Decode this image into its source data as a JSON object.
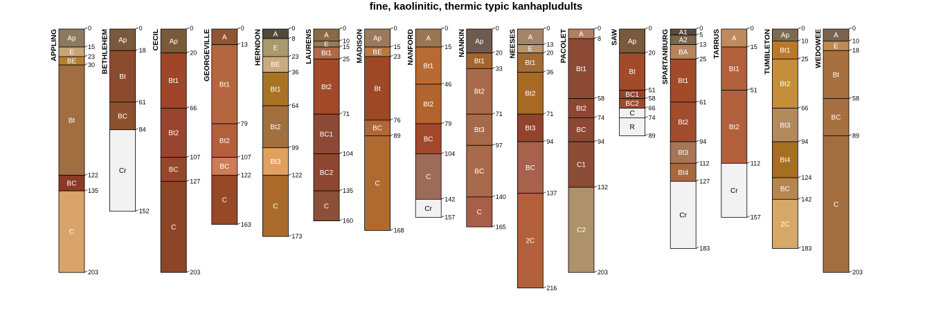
{
  "title": "fine, kaolinitic, thermic typic kanhapludults",
  "chart_data": {
    "type": "soil-profile-sketch",
    "depth_unit": "cm",
    "profiles": [
      {
        "name": "APPLING",
        "horizons": [
          {
            "name": "Ap",
            "top": 0,
            "bottom": 15,
            "color": "#8d7a5e"
          },
          {
            "name": "E",
            "top": 15,
            "bottom": 23,
            "color": "#c8a47a"
          },
          {
            "name": "BE",
            "top": 23,
            "bottom": 30,
            "color": "#b57f2f"
          },
          {
            "name": "Bt",
            "top": 30,
            "bottom": 122,
            "color": "#a16e42"
          },
          {
            "name": "BC",
            "top": 122,
            "bottom": 135,
            "color": "#8b3a23"
          },
          {
            "name": "C",
            "top": 135,
            "bottom": 203,
            "color": "#d9a36c"
          }
        ]
      },
      {
        "name": "BETHLEHEM",
        "horizons": [
          {
            "name": "Ap",
            "top": 0,
            "bottom": 18,
            "color": "#7a5a3c"
          },
          {
            "name": "Bt",
            "top": 18,
            "bottom": 61,
            "color": "#8c4a2e"
          },
          {
            "name": "BC",
            "top": 61,
            "bottom": 84,
            "color": "#8c5230"
          },
          {
            "name": "Cr",
            "top": 84,
            "bottom": 152,
            "color": "#f2f2f2"
          }
        ]
      },
      {
        "name": "CECIL",
        "horizons": [
          {
            "name": "Ap",
            "top": 0,
            "bottom": 20,
            "color": "#7a5a3a"
          },
          {
            "name": "Bt1",
            "top": 20,
            "bottom": 66,
            "color": "#a0452a"
          },
          {
            "name": "Bt2",
            "top": 66,
            "bottom": 107,
            "color": "#9a4430"
          },
          {
            "name": "BC",
            "top": 107,
            "bottom": 127,
            "color": "#96462a"
          },
          {
            "name": "C",
            "top": 127,
            "bottom": 203,
            "color": "#8e4426"
          }
        ]
      },
      {
        "name": "GEORGEVILLE",
        "horizons": [
          {
            "name": "A",
            "top": 0,
            "bottom": 13,
            "color": "#8e5532"
          },
          {
            "name": "Bt1",
            "top": 13,
            "bottom": 79,
            "color": "#b6663e"
          },
          {
            "name": "Bt2",
            "top": 79,
            "bottom": 107,
            "color": "#b25f3a"
          },
          {
            "name": "BC",
            "top": 107,
            "bottom": 122,
            "color": "#cd7c55"
          },
          {
            "name": "C",
            "top": 122,
            "bottom": 163,
            "color": "#964827"
          }
        ]
      },
      {
        "name": "HERNDON",
        "horizons": [
          {
            "name": "A",
            "top": 0,
            "bottom": 8,
            "color": "#52483c"
          },
          {
            "name": "E",
            "top": 8,
            "bottom": 23,
            "color": "#a89a6c"
          },
          {
            "name": "BE",
            "top": 23,
            "bottom": 36,
            "color": "#c9ab7e"
          },
          {
            "name": "Bt1",
            "top": 36,
            "bottom": 64,
            "color": "#a87424"
          },
          {
            "name": "Bt2",
            "top": 64,
            "bottom": 99,
            "color": "#a2703e"
          },
          {
            "name": "Bt3",
            "top": 99,
            "bottom": 122,
            "color": "#e0a05e"
          },
          {
            "name": "C",
            "top": 122,
            "bottom": 173,
            "color": "#aa6b2a"
          }
        ]
      },
      {
        "name": "LAURENS",
        "horizons": [
          {
            "name": "A",
            "top": 0,
            "bottom": 10,
            "color": "#8a6a44"
          },
          {
            "name": "E",
            "top": 10,
            "bottom": 15,
            "color": "#9c7a58"
          },
          {
            "name": "Bt1",
            "top": 15,
            "bottom": 25,
            "color": "#b06a48"
          },
          {
            "name": "Bt2",
            "top": 25,
            "bottom": 71,
            "color": "#a24a2a"
          },
          {
            "name": "BC1",
            "top": 71,
            "bottom": 104,
            "color": "#8c4a36"
          },
          {
            "name": "BC2",
            "top": 104,
            "bottom": 135,
            "color": "#8e4630"
          },
          {
            "name": "C",
            "top": 135,
            "bottom": 160,
            "color": "#8c5038"
          }
        ]
      },
      {
        "name": "MADISON",
        "horizons": [
          {
            "name": "Ap",
            "top": 0,
            "bottom": 15,
            "color": "#9a7a5c"
          },
          {
            "name": "BE",
            "top": 15,
            "bottom": 23,
            "color": "#b8783e"
          },
          {
            "name": "Bt",
            "top": 23,
            "bottom": 76,
            "color": "#9e4826"
          },
          {
            "name": "BC",
            "top": 76,
            "bottom": 89,
            "color": "#b06636"
          },
          {
            "name": "C",
            "top": 89,
            "bottom": 168,
            "color": "#b06a30"
          }
        ]
      },
      {
        "name": "NANFORD",
        "horizons": [
          {
            "name": "A",
            "top": 0,
            "bottom": 15,
            "color": "#9a7654"
          },
          {
            "name": "Bt1",
            "top": 15,
            "bottom": 46,
            "color": "#b86a34"
          },
          {
            "name": "Bt2",
            "top": 46,
            "bottom": 79,
            "color": "#b2642e"
          },
          {
            "name": "BC",
            "top": 79,
            "bottom": 104,
            "color": "#a2482c"
          },
          {
            "name": "C",
            "top": 104,
            "bottom": 142,
            "color": "#9c6c58"
          },
          {
            "name": "Cr",
            "top": 142,
            "bottom": 157,
            "color": "#f2f2f2"
          }
        ]
      },
      {
        "name": "NANKIN",
        "horizons": [
          {
            "name": "Ap",
            "top": 0,
            "bottom": 20,
            "color": "#6e5a4e"
          },
          {
            "name": "Bt1",
            "top": 20,
            "bottom": 33,
            "color": "#a4642e"
          },
          {
            "name": "Bt2",
            "top": 33,
            "bottom": 71,
            "color": "#a86a4a"
          },
          {
            "name": "Bt3",
            "top": 71,
            "bottom": 97,
            "color": "#a66a48"
          },
          {
            "name": "BC",
            "top": 97,
            "bottom": 140,
            "color": "#a86a4a"
          },
          {
            "name": "C",
            "top": 140,
            "bottom": 165,
            "color": "#a85e48"
          }
        ]
      },
      {
        "name": "NEESES",
        "horizons": [
          {
            "name": "A",
            "top": 0,
            "bottom": 13,
            "color": "#a6846a"
          },
          {
            "name": "E",
            "top": 13,
            "bottom": 20,
            "color": "#b8946c"
          },
          {
            "name": "Bt1",
            "top": 20,
            "bottom": 36,
            "color": "#a26a34"
          },
          {
            "name": "Bt2",
            "top": 36,
            "bottom": 71,
            "color": "#a66a24"
          },
          {
            "name": "Bt3",
            "top": 71,
            "bottom": 94,
            "color": "#92442a"
          },
          {
            "name": "BC",
            "top": 94,
            "bottom": 137,
            "color": "#a6624c"
          },
          {
            "name": "2C",
            "top": 137,
            "bottom": 216,
            "color": "#b2603c"
          }
        ]
      },
      {
        "name": "PACOLET",
        "horizons": [
          {
            "name": "A",
            "top": 0,
            "bottom": 8,
            "color": "#b47e60"
          },
          {
            "name": "Bt1",
            "top": 8,
            "bottom": 58,
            "color": "#8c4a36"
          },
          {
            "name": "Bt2",
            "top": 58,
            "bottom": 74,
            "color": "#8e4632"
          },
          {
            "name": "BC",
            "top": 74,
            "bottom": 94,
            "color": "#8c4834"
          },
          {
            "name": "C1",
            "top": 94,
            "bottom": 132,
            "color": "#8c4c36"
          },
          {
            "name": "C2",
            "top": 132,
            "bottom": 203,
            "color": "#ae926c"
          }
        ]
      },
      {
        "name": "SAW",
        "horizons": [
          {
            "name": "Ap",
            "top": 0,
            "bottom": 20,
            "color": "#7a5a3c"
          },
          {
            "name": "Bt",
            "top": 20,
            "bottom": 51,
            "color": "#a24a2a"
          },
          {
            "name": "BC1",
            "top": 51,
            "bottom": 58,
            "color": "#9a4228"
          },
          {
            "name": "BC2",
            "top": 58,
            "bottom": 66,
            "color": "#9e4a30"
          },
          {
            "name": "C",
            "top": 66,
            "bottom": 74,
            "color": "#f2f2f2"
          },
          {
            "name": "R",
            "top": 74,
            "bottom": 89,
            "color": "#f2f2f2"
          }
        ]
      },
      {
        "name": "SPARTANBURG",
        "horizons": [
          {
            "name": "A1",
            "top": 0,
            "bottom": 5,
            "color": "#5e4a3a"
          },
          {
            "name": "A2",
            "top": 5,
            "bottom": 13,
            "color": "#7e6448"
          },
          {
            "name": "BA",
            "top": 13,
            "bottom": 25,
            "color": "#b8845c"
          },
          {
            "name": "Bt1",
            "top": 25,
            "bottom": 61,
            "color": "#a24a2a"
          },
          {
            "name": "Bt2",
            "top": 61,
            "bottom": 94,
            "color": "#a24c2e"
          },
          {
            "name": "Bt3",
            "top": 94,
            "bottom": 112,
            "color": "#a67656"
          },
          {
            "name": "Bt4",
            "top": 112,
            "bottom": 127,
            "color": "#a66a40"
          },
          {
            "name": "Cr",
            "top": 127,
            "bottom": 183,
            "color": "#f2f2f2"
          }
        ]
      },
      {
        "name": "TARRUS",
        "horizons": [
          {
            "name": "A",
            "top": 0,
            "bottom": 15,
            "color": "#c08a5c"
          },
          {
            "name": "Bt1",
            "top": 15,
            "bottom": 51,
            "color": "#b2603c"
          },
          {
            "name": "Bt2",
            "top": 51,
            "bottom": 112,
            "color": "#b2603c"
          },
          {
            "name": "Cr",
            "top": 112,
            "bottom": 157,
            "color": "#f2f2f2"
          }
        ]
      },
      {
        "name": "TUMBLETON",
        "horizons": [
          {
            "name": "Ap",
            "top": 0,
            "bottom": 10,
            "color": "#7e6a52"
          },
          {
            "name": "Bt1",
            "top": 10,
            "bottom": 25,
            "color": "#b87a28"
          },
          {
            "name": "Bt2",
            "top": 25,
            "bottom": 66,
            "color": "#c48e3a"
          },
          {
            "name": "Bt3",
            "top": 66,
            "bottom": 94,
            "color": "#b28a5c"
          },
          {
            "name": "Bt4",
            "top": 94,
            "bottom": 124,
            "color": "#a66e20"
          },
          {
            "name": "BC",
            "top": 124,
            "bottom": 142,
            "color": "#b6864e"
          },
          {
            "name": "2C",
            "top": 142,
            "bottom": 183,
            "color": "#d8a868"
          }
        ]
      },
      {
        "name": "WEDOWEE",
        "horizons": [
          {
            "name": "A",
            "top": 0,
            "bottom": 10,
            "color": "#7a6450"
          },
          {
            "name": "E",
            "top": 10,
            "bottom": 18,
            "color": "#c08a52"
          },
          {
            "name": "Bt",
            "top": 18,
            "bottom": 58,
            "color": "#a87040"
          },
          {
            "name": "BC",
            "top": 58,
            "bottom": 89,
            "color": "#a87040"
          },
          {
            "name": "C",
            "top": 89,
            "bottom": 203,
            "color": "#a26e40"
          }
        ]
      }
    ]
  }
}
